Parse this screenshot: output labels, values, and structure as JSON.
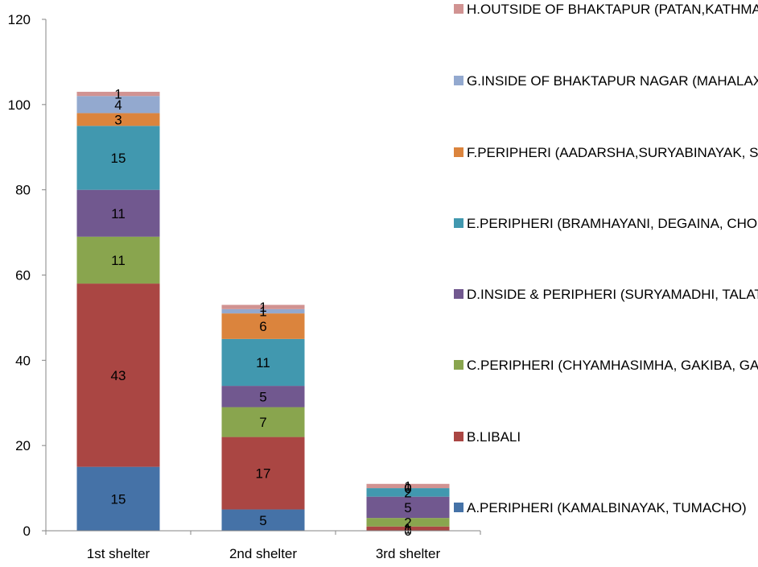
{
  "chart_data": {
    "type": "bar",
    "stacked": true,
    "title": "",
    "xlabel": "",
    "ylabel": "",
    "ylim": [
      0,
      120
    ],
    "yticks": [
      0,
      20,
      40,
      60,
      80,
      100,
      120
    ],
    "grid": false,
    "legend_position": "right",
    "categories": [
      "1st shelter",
      "2nd shelter",
      "3rd shelter"
    ],
    "series": [
      {
        "name": "A.PERIPHERI (KAMALBINAYAK, TUMACHO)",
        "color": "#4572A7",
        "values": [
          15,
          5,
          0
        ]
      },
      {
        "name": "B.LIBALI",
        "color": "#AA4643",
        "values": [
          43,
          17,
          1
        ]
      },
      {
        "name": "C.PERIPHERI (CHYAMHASIMHA, GAKIBA, GARKHARCHA)",
        "color": "#89A54E",
        "values": [
          11,
          7,
          2
        ]
      },
      {
        "name": "D.INSIDE & PERIPHERI (SURYAMADHI, TALATUNCHHI, LIBI, DATTATRAYA)",
        "color": "#71588F",
        "values": [
          11,
          5,
          5
        ]
      },
      {
        "name": "E.PERIPHERI (BRAMHAYANI, DEGAINA, CHOKHATE, ITHACHA)",
        "color": "#4198AF",
        "values": [
          15,
          11,
          2
        ]
      },
      {
        "name": "F.PERIPHERI (AADARSHA,SURYABINAYAK, SALLAGHARI)",
        "color": "#DB843D",
        "values": [
          3,
          6,
          0
        ]
      },
      {
        "name": "G.INSIDE OF BHAKTAPUR NAGAR (MAHALAXMI, NAGPOKHARI, TRIPURASUNDARI, NASAMANA, KWATHANDO)",
        "color": "#93A9CF",
        "values": [
          4,
          1,
          0
        ]
      },
      {
        "name": "H.OUTSIDE OF BHAKTAPUR (PATAN,KATHMANDU)",
        "color": "#D19392",
        "values": [
          1,
          1,
          1
        ]
      }
    ]
  }
}
